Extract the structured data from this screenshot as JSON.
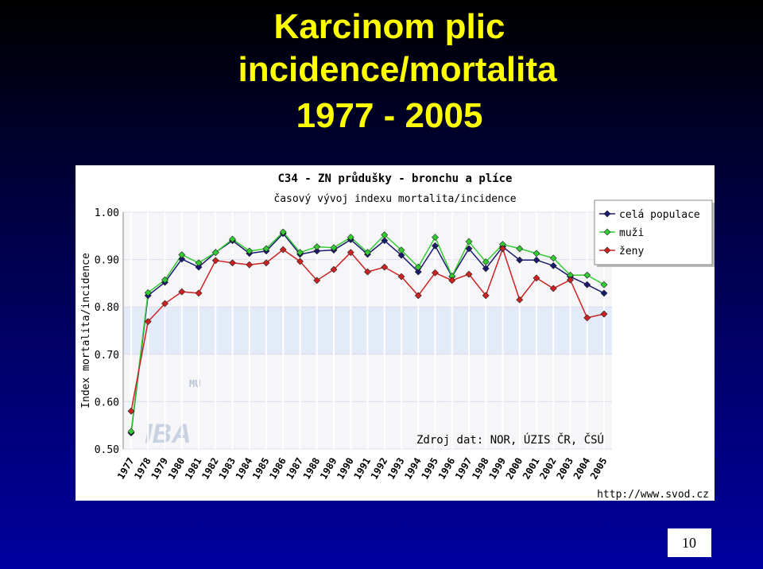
{
  "slide": {
    "title_lines": [
      "Karcinom plic",
      "incidence/mortalita",
      "1977 - 2005"
    ],
    "page_number": "10",
    "source": "Zdroj dat: NOR, ÚZIS ČR, ČSÚ",
    "url": "http://www.svod.cz",
    "watermark": [
      "MU",
      "IBA"
    ]
  },
  "chart_data": {
    "type": "line",
    "title": "C34 - ZN průdušky - bronchu a plíce",
    "subtitle": "časový vývoj indexu mortalita/incidence",
    "ylabel": "Index mortalita/incidence",
    "categories": [
      "1977",
      "1978",
      "1979",
      "1980",
      "1981",
      "1982",
      "1983",
      "1984",
      "1985",
      "1986",
      "1987",
      "1988",
      "1989",
      "1990",
      "1991",
      "1992",
      "1993",
      "1994",
      "1995",
      "1996",
      "1997",
      "1998",
      "1999",
      "2000",
      "2001",
      "2002",
      "2003",
      "2004",
      "2005"
    ],
    "series": [
      {
        "name": "celá populace",
        "color": "#1a1a6e",
        "values": [
          0.534,
          0.824,
          0.852,
          0.901,
          0.884,
          0.915,
          0.94,
          0.913,
          0.918,
          0.955,
          0.911,
          0.918,
          0.92,
          0.942,
          0.911,
          0.94,
          0.909,
          0.874,
          0.929,
          0.864,
          0.923,
          0.881,
          0.927,
          0.899,
          0.899,
          0.887,
          0.864,
          0.847,
          0.829
        ]
      },
      {
        "name": "muži",
        "color": "#33cc33",
        "values": [
          0.537,
          0.83,
          0.857,
          0.91,
          0.893,
          0.915,
          0.943,
          0.918,
          0.923,
          0.958,
          0.915,
          0.927,
          0.925,
          0.947,
          0.915,
          0.952,
          0.92,
          0.884,
          0.947,
          0.865,
          0.938,
          0.895,
          0.932,
          0.923,
          0.913,
          0.903,
          0.867,
          0.867,
          0.847
        ]
      },
      {
        "name": "ženy",
        "color": "#cc2222",
        "values": [
          0.58,
          0.769,
          0.807,
          0.832,
          0.829,
          0.898,
          0.893,
          0.889,
          0.893,
          0.921,
          0.896,
          0.856,
          0.879,
          0.915,
          0.874,
          0.884,
          0.864,
          0.824,
          0.872,
          0.856,
          0.869,
          0.824,
          0.923,
          0.815,
          0.861,
          0.839,
          0.857,
          0.777,
          0.785
        ]
      }
    ],
    "ylim": [
      0.5,
      1.0
    ],
    "yticks": [
      {
        "value": 0.5,
        "label": "0.50"
      },
      {
        "value": 0.6,
        "label": "0.60"
      },
      {
        "value": 0.7,
        "label": "0.70"
      },
      {
        "value": 0.8,
        "label": "0.80"
      },
      {
        "value": 0.9,
        "label": "0.90"
      },
      {
        "value": 1.0,
        "label": "1.00"
      }
    ],
    "grid": true,
    "legend": "top-right"
  }
}
